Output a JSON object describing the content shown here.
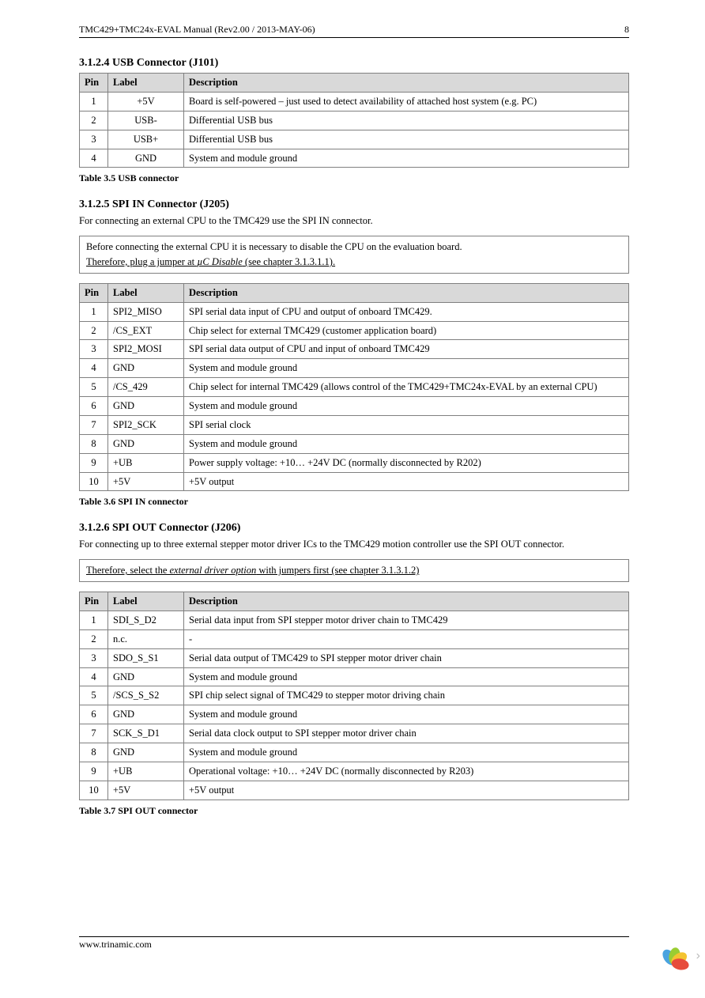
{
  "header": {
    "title": "TMC429+TMC24x-EVAL Manual (Rev2.00 / 2013-MAY-06)",
    "page": "8"
  },
  "footer": {
    "url": "www.trinamic.com"
  },
  "logo": {
    "petals": [
      "#4aa3df",
      "#9acd32",
      "#f4c430",
      "#e74c3c"
    ]
  },
  "sections": {
    "s1": {
      "heading": "3.1.2.4  USB Connector (J101)",
      "caption": "Table 3.5 USB connector",
      "cols": {
        "pin": "Pin",
        "label": "Label",
        "desc": "Description"
      },
      "rows": [
        {
          "pin": "1",
          "label": "+5V",
          "desc": "Board is self-powered – just used to detect availability of attached host system (e.g. PC)"
        },
        {
          "pin": "2",
          "label": "USB-",
          "desc": "Differential USB bus"
        },
        {
          "pin": "3",
          "label": "USB+",
          "desc": "Differential USB bus"
        },
        {
          "pin": "4",
          "label": "GND",
          "desc": "System and module ground"
        }
      ]
    },
    "s2": {
      "heading": "3.1.2.5  SPI IN Connector (J205)",
      "intro": "For connecting an external CPU to the TMC429 use the SPI IN connector.",
      "note_a": "Before connecting the external CPU it is necessary to disable the CPU on the evaluation board.",
      "note_b_pre": "Therefore, plug a jumper at ",
      "note_b_em": "µC Disable",
      "note_b_post": " (see chapter 3.1.3.1.1).",
      "caption": "Table 3.6 SPI IN connector",
      "cols": {
        "pin": "Pin",
        "label": "Label",
        "desc": "Description"
      },
      "rows": [
        {
          "pin": "1",
          "label": "SPI2_MISO",
          "desc": "SPI serial data input of CPU and output of onboard TMC429."
        },
        {
          "pin": "2",
          "label": "/CS_EXT",
          "desc": "Chip select for external TMC429 (customer application board)"
        },
        {
          "pin": "3",
          "label": "SPI2_MOSI",
          "desc": "SPI serial data output of CPU and input of onboard TMC429"
        },
        {
          "pin": "4",
          "label": "GND",
          "desc": "System and module ground"
        },
        {
          "pin": "5",
          "label": "/CS_429",
          "desc": "Chip select for internal TMC429 (allows control of the TMC429+TMC24x-EVAL by an external CPU)"
        },
        {
          "pin": "6",
          "label": "GND",
          "desc": "System and module ground"
        },
        {
          "pin": "7",
          "label": "SPI2_SCK",
          "desc": "SPI serial clock"
        },
        {
          "pin": "8",
          "label": "GND",
          "desc": "System and module ground"
        },
        {
          "pin": "9",
          "label": "+UB",
          "desc": "Power supply voltage: +10… +24V DC (normally disconnected by R202)"
        },
        {
          "pin": "10",
          "label": "+5V",
          "desc": "+5V output"
        }
      ]
    },
    "s3": {
      "heading": "3.1.2.6  SPI OUT Connector (J206)",
      "intro": "For connecting up to three external stepper motor driver ICs to the TMC429 motion controller use the SPI OUT connector.",
      "note_pre": "Therefore, select the ",
      "note_em": "external driver option",
      "note_post": " with jumpers first (see chapter 3.1.3.1.2)",
      "caption": "Table 3.7 SPI OUT connector",
      "cols": {
        "pin": "Pin",
        "label": "Label",
        "desc": "Description"
      },
      "rows": [
        {
          "pin": "1",
          "label": "SDI_S_D2",
          "desc": "Serial data input from SPI stepper motor driver chain to TMC429"
        },
        {
          "pin": "2",
          "label": "n.c.",
          "desc": "-"
        },
        {
          "pin": "3",
          "label": "SDO_S_S1",
          "desc": "Serial data output of TMC429 to SPI stepper motor driver chain"
        },
        {
          "pin": "4",
          "label": "GND",
          "desc": "System and module ground"
        },
        {
          "pin": "5",
          "label": "/SCS_S_S2",
          "desc": "SPI chip select signal of TMC429 to stepper motor driving chain"
        },
        {
          "pin": "6",
          "label": "GND",
          "desc": "System and module ground"
        },
        {
          "pin": "7",
          "label": "SCK_S_D1",
          "desc": "Serial data clock output to SPI stepper motor driver chain"
        },
        {
          "pin": "8",
          "label": "GND",
          "desc": "System and module ground"
        },
        {
          "pin": "9",
          "label": "+UB",
          "desc": "Operational voltage: +10… +24V DC (normally disconnected by R203)"
        },
        {
          "pin": "10",
          "label": "+5V",
          "desc": "+5V output"
        }
      ]
    }
  }
}
